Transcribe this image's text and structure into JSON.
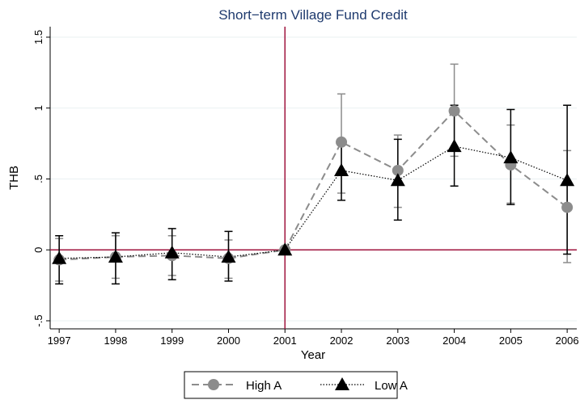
{
  "chart_data": {
    "type": "line",
    "title": "Short−term Village Fund Credit",
    "x_label": "Year",
    "y_label": "THB",
    "x": [
      1997,
      1998,
      1999,
      2000,
      2001,
      2002,
      2003,
      2004,
      2005,
      2006
    ],
    "series": [
      {
        "name": "High A",
        "color": "#8c8c8c",
        "marker": "circle",
        "line": "dashed",
        "values": [
          -0.07,
          -0.05,
          -0.04,
          -0.06,
          0,
          0.76,
          0.56,
          0.98,
          0.6,
          0.3
        ],
        "lower": [
          -0.22,
          -0.2,
          -0.18,
          -0.2,
          0,
          0.4,
          0.3,
          0.66,
          0.33,
          -0.09
        ],
        "upper": [
          0.08,
          0.1,
          0.1,
          0.07,
          0,
          1.1,
          0.81,
          1.31,
          0.88,
          0.7
        ]
      },
      {
        "name": "Low A",
        "color": "#000000",
        "marker": "triangle",
        "line": "dotted",
        "values": [
          -0.06,
          -0.05,
          -0.02,
          -0.05,
          0,
          0.56,
          0.49,
          0.73,
          0.65,
          0.49
        ],
        "lower": [
          -0.24,
          -0.24,
          -0.21,
          -0.22,
          0,
          0.35,
          0.21,
          0.45,
          0.32,
          -0.03
        ],
        "upper": [
          0.1,
          0.12,
          0.15,
          0.13,
          0,
          0.77,
          0.78,
          1.02,
          0.99,
          1.02
        ]
      }
    ],
    "xlim": [
      1996.84,
      2006.17
    ],
    "ylim": [
      -0.557,
      1.574
    ],
    "xticks": [
      1997,
      1998,
      1999,
      2000,
      2001,
      2002,
      2003,
      2004,
      2005,
      2006
    ],
    "yticks": [
      {
        "value": -0.5,
        "label": "-.5"
      },
      0,
      {
        "value": 0.5,
        "label": ".5"
      },
      1,
      1.5
    ],
    "grid": true,
    "xline": 2001,
    "yline": 0,
    "refline_color": "#a0153e",
    "legend": "bottom"
  }
}
